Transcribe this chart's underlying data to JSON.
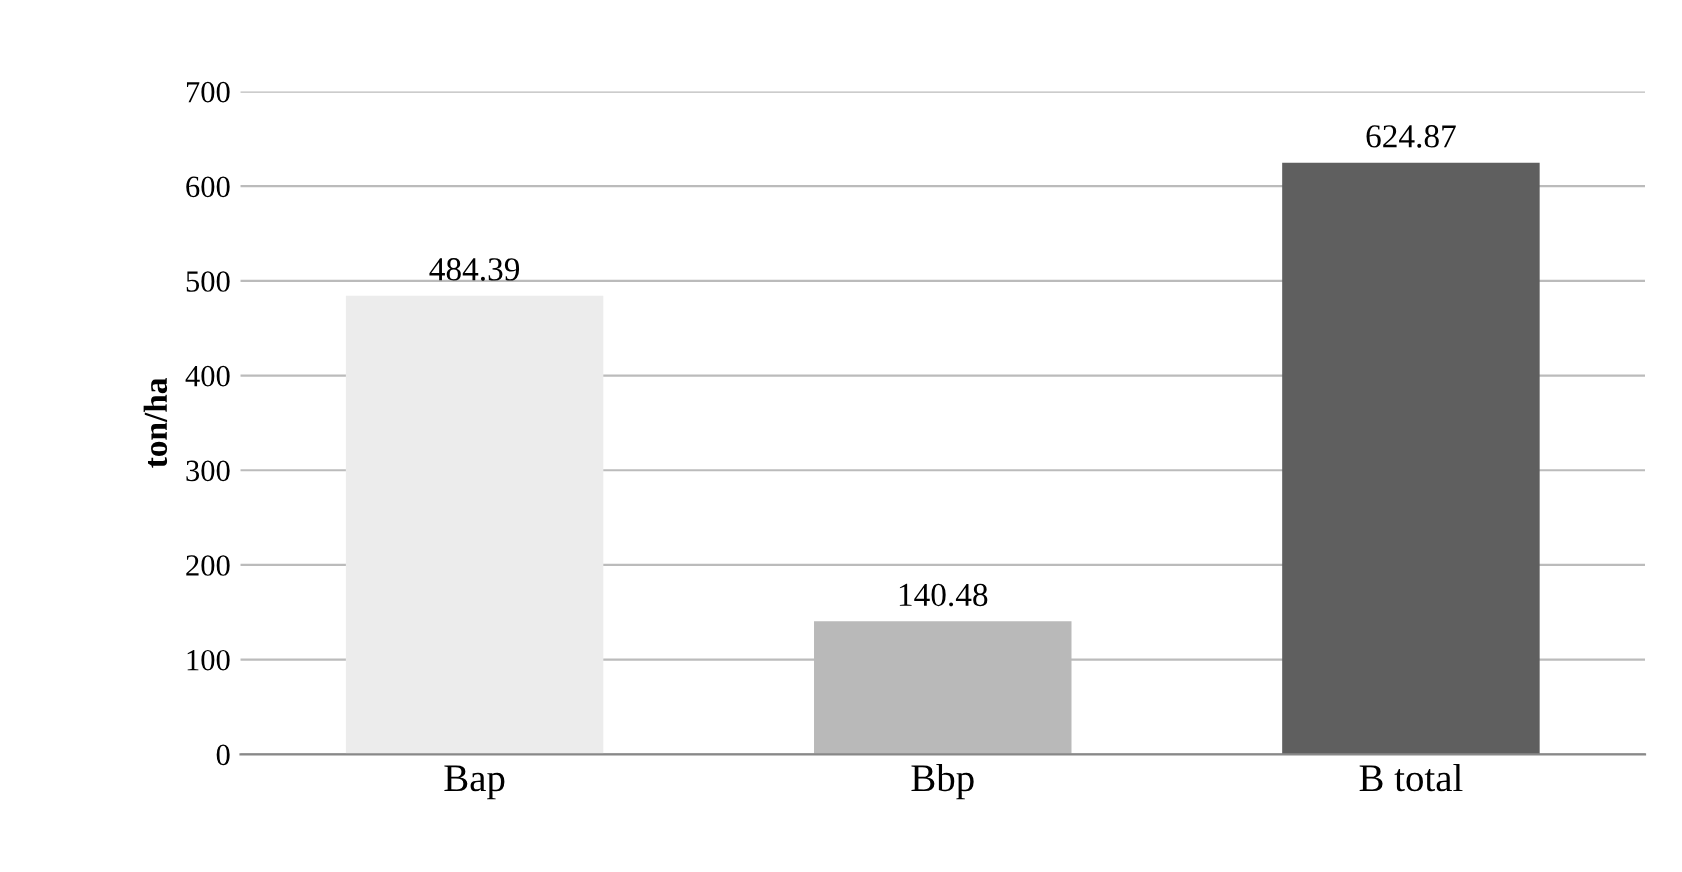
{
  "chart_data": {
    "type": "bar",
    "ylabel": "ton/ha",
    "categories": [
      "Bap",
      "Bbp",
      "B total"
    ],
    "values": [
      484.39,
      140.48,
      624.87
    ],
    "colors": [
      "#ececec",
      "#b9b9b9",
      "#5f5f5f"
    ],
    "ylim": [
      0,
      700
    ],
    "yticks": [
      0,
      100,
      200,
      300,
      400,
      500,
      600,
      700
    ],
    "grid": "y",
    "data_labels": true
  }
}
